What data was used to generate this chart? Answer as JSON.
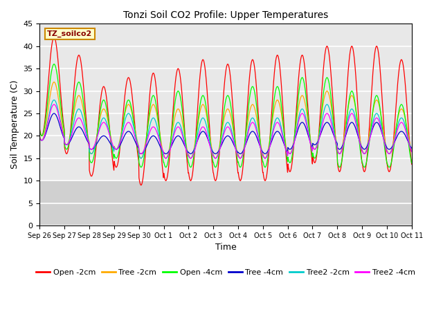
{
  "title": "Tonzi Soil CO2 Profile: Upper Temperatures",
  "xlabel": "Time",
  "ylabel": "Soil Temperature (C)",
  "ylim": [
    0,
    45
  ],
  "yticks": [
    0,
    5,
    10,
    15,
    20,
    25,
    30,
    35,
    40,
    45
  ],
  "xtick_labels": [
    "Sep 26",
    "Sep 27",
    "Sep 28",
    "Sep 29",
    "Sep 30",
    "Oct 1",
    "Oct 2",
    "Oct 3",
    "Oct 4",
    "Oct 5",
    "Oct 6",
    "Oct 7",
    "Oct 8",
    "Oct 9",
    "Oct 10",
    "Oct 11"
  ],
  "annotation_text": "TZ_soilco2",
  "annotation_bbox_facecolor": "#ffffcc",
  "annotation_bbox_edgecolor": "#cc8800",
  "series": [
    {
      "label": "Open -2cm",
      "color": "#ff0000"
    },
    {
      "label": "Tree -2cm",
      "color": "#ffaa00"
    },
    {
      "label": "Open -4cm",
      "color": "#00ff00"
    },
    {
      "label": "Tree -4cm",
      "color": "#0000cc"
    },
    {
      "label": "Tree2 -2cm",
      "color": "#00cccc"
    },
    {
      "label": "Tree2 -4cm",
      "color": "#ff00ff"
    }
  ],
  "fig_bg_color": "#ffffff",
  "plot_bg_color": "#e8e8e8",
  "grid_color": "#ffffff",
  "band_color": "#d0d0d0",
  "n_days": 15,
  "steps_per_day": 96,
  "peaks_open2": [
    42,
    38,
    31,
    33,
    34,
    35,
    37,
    36,
    37,
    38,
    38,
    40,
    40,
    40,
    37
  ],
  "troughs_open2": [
    20,
    16,
    11,
    13,
    9,
    10,
    10,
    10,
    10,
    10,
    12,
    14,
    12,
    12,
    12
  ],
  "peaks_tree2": [
    32,
    29,
    26,
    27,
    27,
    26,
    27,
    26,
    27,
    28,
    29,
    30,
    29,
    28,
    26
  ],
  "troughs_tree2": [
    19,
    18,
    16,
    17,
    15,
    15,
    15,
    15,
    15,
    15,
    16,
    17,
    16,
    16,
    16
  ],
  "peaks_open4": [
    36,
    32,
    28,
    28,
    29,
    30,
    29,
    29,
    31,
    31,
    33,
    33,
    30,
    29,
    27
  ],
  "troughs_open4": [
    20,
    17,
    14,
    15,
    13,
    13,
    13,
    13,
    13,
    13,
    14,
    15,
    13,
    13,
    13
  ],
  "peaks_tree4": [
    25,
    22,
    20,
    21,
    20,
    20,
    21,
    20,
    21,
    21,
    23,
    23,
    23,
    23,
    21
  ],
  "troughs_tree4": [
    19,
    18,
    17,
    17,
    16,
    16,
    16,
    16,
    16,
    16,
    17,
    18,
    17,
    17,
    17
  ],
  "peaks_tree2c": [
    28,
    26,
    24,
    25,
    24,
    23,
    24,
    23,
    24,
    24,
    26,
    27,
    26,
    25,
    24
  ],
  "troughs_tree2c": [
    19,
    18,
    16,
    17,
    15,
    15,
    15,
    15,
    15,
    15,
    16,
    17,
    16,
    16,
    16
  ],
  "peaks_tree24": [
    27,
    24,
    23,
    23,
    22,
    22,
    22,
    22,
    23,
    23,
    25,
    25,
    25,
    24,
    23
  ],
  "troughs_tree24": [
    19,
    18,
    17,
    17,
    16,
    15,
    15,
    15,
    15,
    15,
    16,
    17,
    16,
    16,
    16
  ]
}
